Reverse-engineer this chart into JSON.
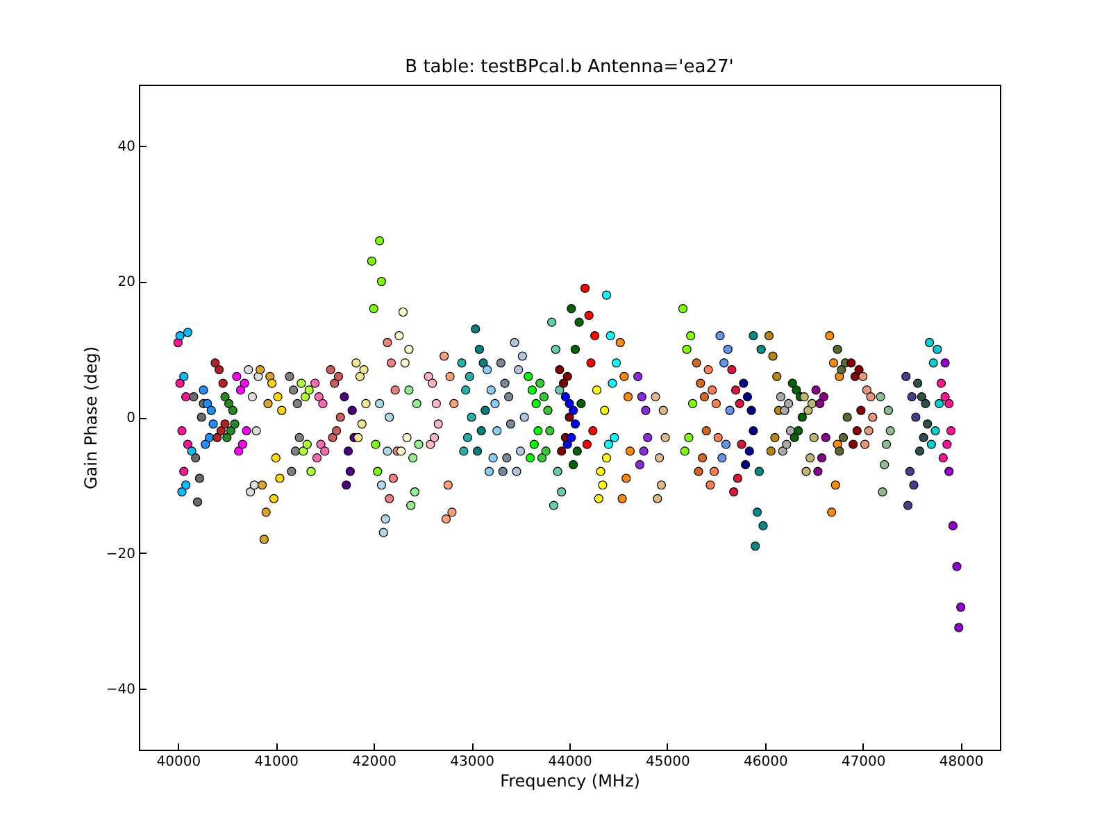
{
  "chart_data": {
    "type": "scatter",
    "title": "B table: testBPcal.b      Antenna='ea27'",
    "xlabel": "Frequency (MHz)",
    "ylabel": "Gain Phase (deg)",
    "xlim": [
      39600,
      48400
    ],
    "ylim": [
      -49,
      49
    ],
    "xticks": [
      40000,
      41000,
      42000,
      43000,
      44000,
      45000,
      46000,
      47000,
      48000
    ],
    "yticks": [
      -40,
      -20,
      0,
      20,
      40
    ],
    "grid": false,
    "legend": false,
    "marker": "circle",
    "series": [
      {
        "color": "#ff1493",
        "x": [
          40000,
          40020,
          40040,
          40060,
          40080,
          40100
        ],
        "values": [
          11,
          5,
          -2,
          -8,
          3,
          -4
        ]
      },
      {
        "color": "#00bfff",
        "x": [
          40020,
          40040,
          40060,
          40080,
          40100,
          40140
        ],
        "values": [
          12,
          -11,
          6,
          -10,
          12.5,
          -5
        ]
      },
      {
        "color": "#696969",
        "x": [
          40160,
          40180,
          40200,
          40220,
          40240,
          40260
        ],
        "values": [
          3,
          -6,
          -12.5,
          -9,
          0,
          2
        ]
      },
      {
        "color": "#1e90ff",
        "x": [
          40260,
          40280,
          40300,
          40320,
          40340,
          40360
        ],
        "values": [
          4,
          -4,
          2,
          -3,
          1,
          -1
        ]
      },
      {
        "color": "#b22222",
        "x": [
          40380,
          40400,
          40420,
          40440,
          40460,
          40480
        ],
        "values": [
          8,
          -3,
          7,
          -2,
          5,
          -1
        ]
      },
      {
        "color": "#228b22",
        "x": [
          40480,
          40500,
          40520,
          40540,
          40560,
          40580
        ],
        "values": [
          3,
          -3,
          2,
          -2,
          1,
          -1
        ]
      },
      {
        "color": "#ff00ff",
        "x": [
          40600,
          40620,
          40640,
          40660,
          40680,
          40700
        ],
        "values": [
          6,
          -5,
          4,
          -4,
          5,
          -2
        ]
      },
      {
        "color": "#dcdcdc",
        "x": [
          40720,
          40740,
          40760,
          40780,
          40800,
          40820
        ],
        "values": [
          7,
          -11,
          3,
          -10,
          -2,
          6
        ]
      },
      {
        "color": "#daa520",
        "x": [
          40840,
          40860,
          40880,
          40900,
          40920,
          40940
        ],
        "values": [
          7,
          -10,
          -18,
          -14,
          2,
          6
        ]
      },
      {
        "color": "#ffd700",
        "x": [
          40960,
          40980,
          41000,
          41020,
          41040,
          41060
        ],
        "values": [
          5,
          -12,
          -6,
          3,
          -9,
          1
        ]
      },
      {
        "color": "#808080",
        "x": [
          41140,
          41160,
          41180,
          41200,
          41220,
          41240
        ],
        "values": [
          6,
          -8,
          4,
          -5,
          2,
          -3
        ]
      },
      {
        "color": "#adff2f",
        "x": [
          41260,
          41280,
          41300,
          41320,
          41340,
          41360
        ],
        "values": [
          5,
          -5,
          3,
          -4,
          4,
          -8
        ]
      },
      {
        "color": "#ff69b4",
        "x": [
          41400,
          41420,
          41440,
          41460,
          41480,
          41500
        ],
        "values": [
          5,
          -6,
          3,
          -4,
          2,
          -5
        ]
      },
      {
        "color": "#cd5c5c",
        "x": [
          41560,
          41580,
          41600,
          41620,
          41640,
          41660
        ],
        "values": [
          7,
          -3,
          5,
          -2,
          6,
          0
        ]
      },
      {
        "color": "#4b0082",
        "x": [
          41700,
          41720,
          41740,
          41760,
          41780,
          41800
        ],
        "values": [
          3,
          -10,
          -5,
          -8,
          1,
          -3
        ]
      },
      {
        "color": "#f0e68c",
        "x": [
          41820,
          41840,
          41860,
          41880,
          41900,
          41920
        ],
        "values": [
          8,
          -3,
          6,
          -1,
          7,
          2
        ]
      },
      {
        "color": "#7cfc00",
        "x": [
          41980,
          42000,
          42020,
          42040,
          42060,
          42080
        ],
        "values": [
          23,
          16,
          -4,
          -8,
          26,
          20
        ]
      },
      {
        "color": "#add8e6",
        "x": [
          42060,
          42080,
          42100,
          42120,
          42140,
          42160
        ],
        "values": [
          2,
          -10,
          -17,
          -15,
          -5,
          0
        ]
      },
      {
        "color": "#f08080",
        "x": [
          42140,
          42160,
          42180,
          42200,
          42220,
          42240
        ],
        "values": [
          11,
          -12,
          8,
          -9,
          4,
          -5
        ]
      },
      {
        "color": "#fffacd",
        "x": [
          42260,
          42280,
          42300,
          42320,
          42340,
          42360
        ],
        "values": [
          12,
          -5,
          15.5,
          8,
          -3,
          10
        ]
      },
      {
        "color": "#90ee90",
        "x": [
          42360,
          42380,
          42400,
          42420,
          42440,
          42460
        ],
        "values": [
          4,
          -13,
          -6,
          -11,
          2,
          -4
        ]
      },
      {
        "color": "#ffb6c1",
        "x": [
          42560,
          42580,
          42600,
          42620,
          42640,
          42660
        ],
        "values": [
          6,
          -4,
          5,
          -3,
          2,
          -1
        ]
      },
      {
        "color": "#ffa07a",
        "x": [
          42720,
          42740,
          42760,
          42780,
          42800,
          42820
        ],
        "values": [
          9,
          -15,
          -10,
          6,
          -14,
          2
        ]
      },
      {
        "color": "#20b2aa",
        "x": [
          42900,
          42920,
          42940,
          42960,
          42980,
          43000
        ],
        "values": [
          8,
          -5,
          4,
          -3,
          6,
          0
        ]
      },
      {
        "color": "#008080",
        "x": [
          43040,
          43060,
          43080,
          43100,
          43120,
          43140
        ],
        "values": [
          13,
          -5,
          10,
          -2,
          8,
          1
        ]
      },
      {
        "color": "#87cefa",
        "x": [
          43160,
          43180,
          43200,
          43220,
          43240,
          43260
        ],
        "values": [
          7,
          -8,
          4,
          -6,
          2,
          -2
        ]
      },
      {
        "color": "#778899",
        "x": [
          43300,
          43320,
          43340,
          43360,
          43380,
          43400
        ],
        "values": [
          8,
          -8,
          5,
          -6,
          3,
          -1
        ]
      },
      {
        "color": "#b0c4de",
        "x": [
          43440,
          43460,
          43480,
          43500,
          43520,
          43540
        ],
        "values": [
          11,
          -8,
          7,
          -5,
          9,
          0
        ]
      },
      {
        "color": "#00ff00",
        "x": [
          43580,
          43600,
          43620,
          43640,
          43660,
          43680
        ],
        "values": [
          6,
          -6,
          4,
          -4,
          2,
          -2
        ]
      },
      {
        "color": "#32cd32",
        "x": [
          43700,
          43720,
          43740,
          43760,
          43780,
          43800
        ],
        "values": [
          5,
          -6,
          3,
          -5,
          1,
          -2
        ]
      },
      {
        "color": "#66cdaa",
        "x": [
          43820,
          43840,
          43860,
          43880,
          43900,
          43920
        ],
        "values": [
          14,
          -13,
          10,
          -8,
          4,
          -11
        ]
      },
      {
        "color": "#800000",
        "x": [
          43900,
          43920,
          43940,
          43960,
          43980,
          44000
        ],
        "values": [
          7,
          -5,
          5,
          -3,
          6,
          0
        ]
      },
      {
        "color": "#0000ff",
        "x": [
          43960,
          43980,
          44000,
          44020,
          44040,
          44060
        ],
        "values": [
          3,
          -4,
          2,
          -3,
          1,
          -1
        ]
      },
      {
        "color": "#006400",
        "x": [
          44020,
          44040,
          44060,
          44080,
          44100,
          44120
        ],
        "values": [
          16,
          -7,
          10,
          -5,
          14,
          2
        ]
      },
      {
        "color": "#ff0000",
        "x": [
          44160,
          44180,
          44200,
          44220,
          44240,
          44260
        ],
        "values": [
          19,
          -4,
          15,
          8,
          -2,
          12
        ]
      },
      {
        "color": "#ffff00",
        "x": [
          44280,
          44300,
          44320,
          44340,
          44360,
          44380
        ],
        "values": [
          4,
          -12,
          -8,
          -10,
          1,
          -6
        ]
      },
      {
        "color": "#00ffff",
        "x": [
          44380,
          44400,
          44420,
          44440,
          44460,
          44480
        ],
        "values": [
          18,
          -4,
          12,
          5,
          -3,
          8
        ]
      },
      {
        "color": "#ff8c00",
        "x": [
          44520,
          44540,
          44560,
          44580,
          44600,
          44620
        ],
        "values": [
          11,
          -12,
          6,
          -9,
          3,
          -5
        ]
      },
      {
        "color": "#8a2be2",
        "x": [
          44700,
          44720,
          44740,
          44760,
          44780,
          44800
        ],
        "values": [
          6,
          -7,
          3,
          -5,
          1,
          -3
        ]
      },
      {
        "color": "#deb887",
        "x": [
          44880,
          44900,
          44920,
          44940,
          44960,
          44980
        ],
        "values": [
          3,
          -12,
          -6,
          -10,
          1,
          -3
        ]
      },
      {
        "color": "#7fff00",
        "x": [
          45160,
          45180,
          45200,
          45220,
          45240,
          45260
        ],
        "values": [
          16,
          -5,
          10,
          -3,
          12,
          2
        ]
      },
      {
        "color": "#d2691e",
        "x": [
          45300,
          45320,
          45340,
          45360,
          45380,
          45400
        ],
        "values": [
          8,
          -8,
          5,
          -6,
          3,
          -2
        ]
      },
      {
        "color": "#ff7f50",
        "x": [
          45420,
          45440,
          45460,
          45480,
          45500,
          45520
        ],
        "values": [
          7,
          -10,
          4,
          -8,
          2,
          -3
        ]
      },
      {
        "color": "#6495ed",
        "x": [
          45540,
          45560,
          45580,
          45600,
          45620,
          45640
        ],
        "values": [
          12,
          -6,
          8,
          -4,
          10,
          1
        ]
      },
      {
        "color": "#dc143c",
        "x": [
          45660,
          45680,
          45700,
          45720,
          45740,
          45760
        ],
        "values": [
          7,
          -11,
          4,
          -9,
          2,
          -4
        ]
      },
      {
        "color": "#00008b",
        "x": [
          45780,
          45800,
          45820,
          45840,
          45860,
          45880
        ],
        "values": [
          5,
          -7,
          3,
          -5,
          1,
          -2
        ]
      },
      {
        "color": "#008b8b",
        "x": [
          45880,
          45900,
          45920,
          45940,
          45960,
          45980
        ],
        "values": [
          12,
          -19,
          -14,
          -8,
          10,
          -16
        ]
      },
      {
        "color": "#b8860b",
        "x": [
          46040,
          46060,
          46080,
          46100,
          46120,
          46140
        ],
        "values": [
          12,
          -5,
          9,
          -3,
          6,
          1
        ]
      },
      {
        "color": "#a9a9a9",
        "x": [
          46160,
          46180,
          46200,
          46220,
          46240,
          46260
        ],
        "values": [
          3,
          -5,
          1,
          -4,
          2,
          -2
        ]
      },
      {
        "color": "#006400",
        "x": [
          46280,
          46300,
          46320,
          46340,
          46360,
          46380
        ],
        "values": [
          5,
          -3,
          4,
          -2,
          3,
          0
        ]
      },
      {
        "color": "#bdb76b",
        "x": [
          46400,
          46420,
          46440,
          46460,
          46480,
          46500
        ],
        "values": [
          3,
          -8,
          1,
          -6,
          2,
          -3
        ]
      },
      {
        "color": "#8b008b",
        "x": [
          46520,
          46540,
          46560,
          46580,
          46600,
          46620
        ],
        "values": [
          4,
          -8,
          2,
          -6,
          3,
          -3
        ]
      },
      {
        "color": "#ff8c00",
        "x": [
          46660,
          46680,
          46700,
          46720,
          46740,
          46760
        ],
        "values": [
          12,
          -14,
          8,
          -10,
          -4,
          6
        ]
      },
      {
        "color": "#556b2f",
        "x": [
          46740,
          46760,
          46780,
          46800,
          46820,
          46840
        ],
        "values": [
          10,
          -5,
          7,
          -3,
          8,
          0
        ]
      },
      {
        "color": "#8b0000",
        "x": [
          46880,
          46900,
          46920,
          46940,
          46960,
          46980
        ],
        "values": [
          8,
          -4,
          6,
          -2,
          7,
          1
        ]
      },
      {
        "color": "#e9967a",
        "x": [
          47000,
          47020,
          47040,
          47060,
          47080,
          47100
        ],
        "values": [
          6,
          -4,
          4,
          -2,
          3,
          0
        ]
      },
      {
        "color": "#8fbc8f",
        "x": [
          47180,
          47200,
          47220,
          47240,
          47260,
          47280
        ],
        "values": [
          3,
          -11,
          -7,
          -4,
          1,
          -2
        ]
      },
      {
        "color": "#483d8b",
        "x": [
          47440,
          47460,
          47480,
          47500,
          47520,
          47540
        ],
        "values": [
          6,
          -13,
          -8,
          3,
          -10,
          0
        ]
      },
      {
        "color": "#2f4f4f",
        "x": [
          47560,
          47580,
          47600,
          47620,
          47640,
          47660
        ],
        "values": [
          5,
          -5,
          3,
          -3,
          2,
          -1
        ]
      },
      {
        "color": "#00ced1",
        "x": [
          47680,
          47700,
          47720,
          47740,
          47760,
          47780
        ],
        "values": [
          11,
          -4,
          8,
          -2,
          10,
          2
        ]
      },
      {
        "color": "#ff1493",
        "x": [
          47800,
          47820,
          47840,
          47860,
          47880,
          47900
        ],
        "values": [
          5,
          -6,
          3,
          -4,
          2,
          -2
        ]
      },
      {
        "color": "#9400d3",
        "x": [
          47840,
          47880,
          47920,
          47960,
          47980,
          48000
        ],
        "values": [
          8,
          -8,
          -16,
          -22,
          -31,
          -28
        ]
      }
    ]
  }
}
